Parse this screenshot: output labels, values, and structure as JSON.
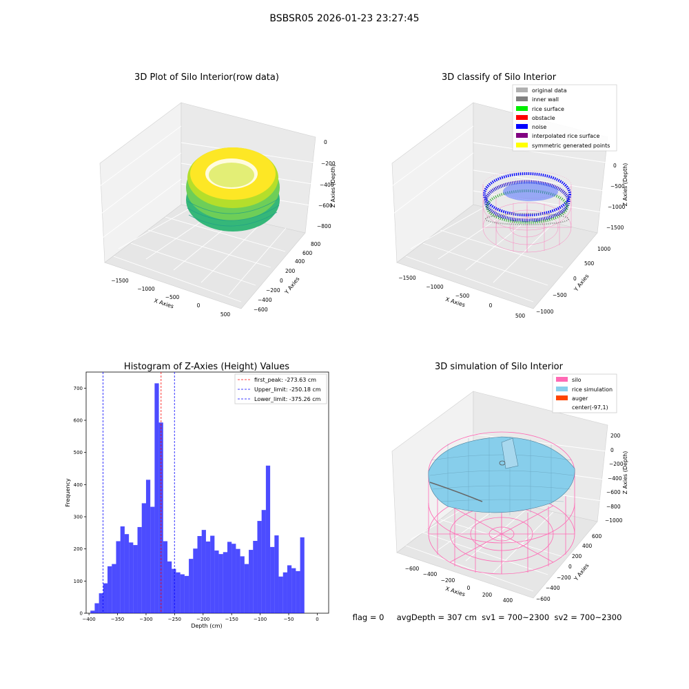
{
  "suptitle": "BSBSR05 2026-01-23 23:27:45",
  "status_line": "flag = 0     avgDepth = 307 cm  sv1 = 700~2300  sv2 = 700~2300",
  "chart_data": [
    {
      "id": "raw",
      "type": "scatter3d",
      "title": "3D Plot of Silo Interior(row data)",
      "xlabel": "X Axies",
      "ylabel": "Y Axies",
      "zlabel": "Z Axies (Depth)",
      "xticks": [
        "−1500",
        "−1000",
        "−500",
        "0",
        "500"
      ],
      "yticks": [
        "−600",
        "−400",
        "−200",
        "0",
        "200",
        "400",
        "600",
        "800"
      ],
      "zticks": [
        "0",
        "−200",
        "−400",
        "−600",
        "−800"
      ],
      "colormap": [
        "#fde725",
        "#b5de2b",
        "#6ece58",
        "#35b779",
        "#1f9e89"
      ]
    },
    {
      "id": "classify",
      "type": "scatter3d",
      "title": "3D classify of Silo Interior",
      "xlabel": "X Axies",
      "ylabel": "Y Axies",
      "zlabel": "Z Axies (Depth)",
      "xticks": [
        "−1500",
        "−1000",
        "−500",
        "0",
        "500"
      ],
      "yticks": [
        "−1000",
        "−500",
        "0",
        "500",
        "1000"
      ],
      "zticks": [
        "0",
        "−500",
        "−1000",
        "−1500"
      ],
      "legend_position": "top-right",
      "legend": [
        {
          "label": "original data",
          "color": "#b0b0b0"
        },
        {
          "label": "inner wall",
          "color": "#808080"
        },
        {
          "label": "rice surface",
          "color": "#00ee00"
        },
        {
          "label": "obstacle",
          "color": "#ff0000"
        },
        {
          "label": "noise",
          "color": "#0000ff"
        },
        {
          "label": "interpolated rice surface",
          "color": "#800080"
        },
        {
          "label": "symmetric generated points",
          "color": "#ffff00"
        }
      ]
    },
    {
      "id": "hist",
      "type": "bar",
      "title": "Histogram of Z-Axies (Height) Values",
      "xlabel": "Depth (cm)",
      "ylabel": "Frequency",
      "xlim": [
        -405,
        20
      ],
      "ylim": [
        0,
        750
      ],
      "xticks": [
        -400,
        -350,
        -300,
        -250,
        -200,
        -150,
        -100,
        -50,
        0
      ],
      "yticks": [
        0,
        100,
        200,
        300,
        400,
        500,
        600,
        700
      ],
      "bar_color": "#0000ff",
      "bin_width": 7.5,
      "bin_start": -397.5,
      "values": [
        8,
        31,
        62,
        93,
        146,
        153,
        224,
        270,
        246,
        220,
        212,
        268,
        342,
        415,
        331,
        715,
        593,
        224,
        161,
        138,
        127,
        121,
        116,
        169,
        201,
        240,
        259,
        223,
        241,
        195,
        184,
        190,
        222,
        216,
        200,
        177,
        153,
        197,
        225,
        287,
        321,
        459,
        206,
        242,
        114,
        127,
        149,
        140,
        131,
        236
      ],
      "lines": [
        {
          "label": "first_peak: -273.63 cm",
          "x": -273.63,
          "color": "#ff0000"
        },
        {
          "label": "Upper_limit: -250.18 cm",
          "x": -250.18,
          "color": "#0000ff"
        },
        {
          "label": "Lower_limit: -375.26 cm",
          "x": -375.26,
          "color": "#0000ff"
        }
      ],
      "legend_position": "top-right"
    },
    {
      "id": "sim",
      "type": "surface3d",
      "title": "3D simulation of Silo Interior",
      "xlabel": "X Axies",
      "ylabel": "Y Axies",
      "zlabel": "Z Axies (Depth)",
      "xticks": [
        "−600",
        "−400",
        "−200",
        "0",
        "200",
        "400"
      ],
      "yticks": [
        "−600",
        "−400",
        "−200",
        "0",
        "200",
        "400",
        "600"
      ],
      "zticks": [
        "200",
        "0",
        "−200",
        "−400",
        "−600",
        "−800",
        "−1000"
      ],
      "legend_position": "top-right",
      "legend": [
        {
          "label": "silo",
          "color": "#ff69b4"
        },
        {
          "label": "rice simulation",
          "color": "#87ceeb"
        },
        {
          "label": "auger",
          "color": "#ff4500"
        },
        {
          "label": "center(-97,1)",
          "color": ""
        }
      ]
    }
  ]
}
